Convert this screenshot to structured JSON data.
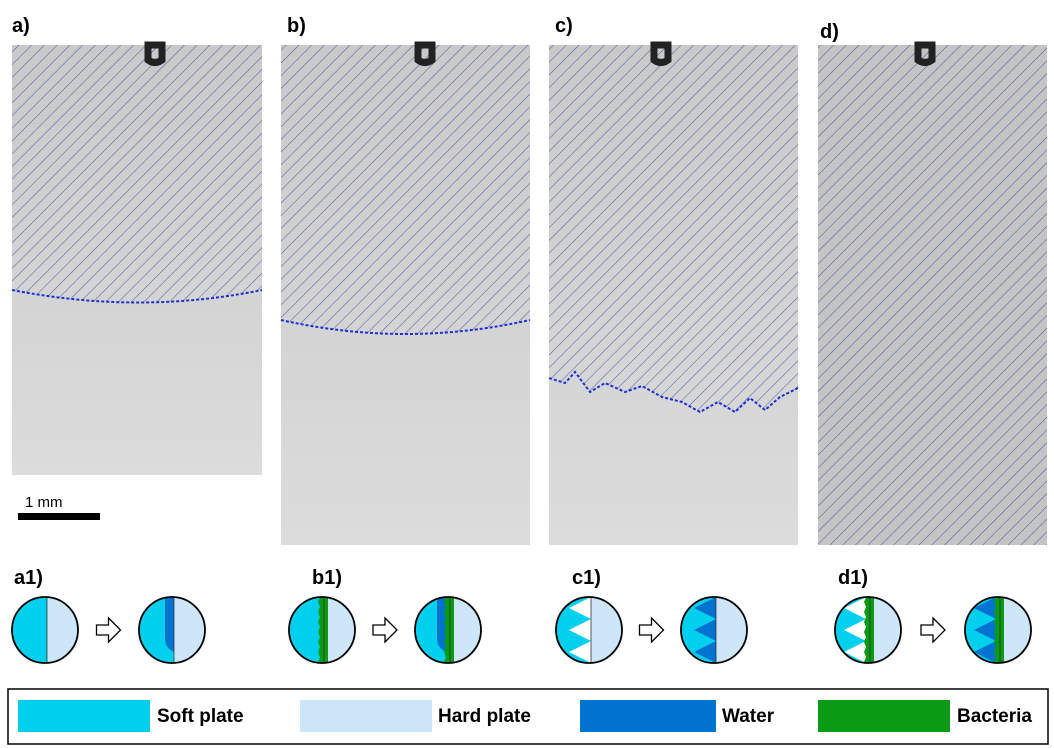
{
  "panels": [
    {
      "label": "a)"
    },
    {
      "label": "b)"
    },
    {
      "label": "c)"
    },
    {
      "label": "d)"
    }
  ],
  "scale_bar": {
    "label": "1 mm"
  },
  "schematics": [
    {
      "label": "a1)"
    },
    {
      "label": "b1)"
    },
    {
      "label": "c1)"
    },
    {
      "label": "d1)"
    }
  ],
  "legend": [
    {
      "label": "Soft plate"
    },
    {
      "label": "Hard plate"
    },
    {
      "label": "Water"
    },
    {
      "label": "Bacteria"
    }
  ]
}
